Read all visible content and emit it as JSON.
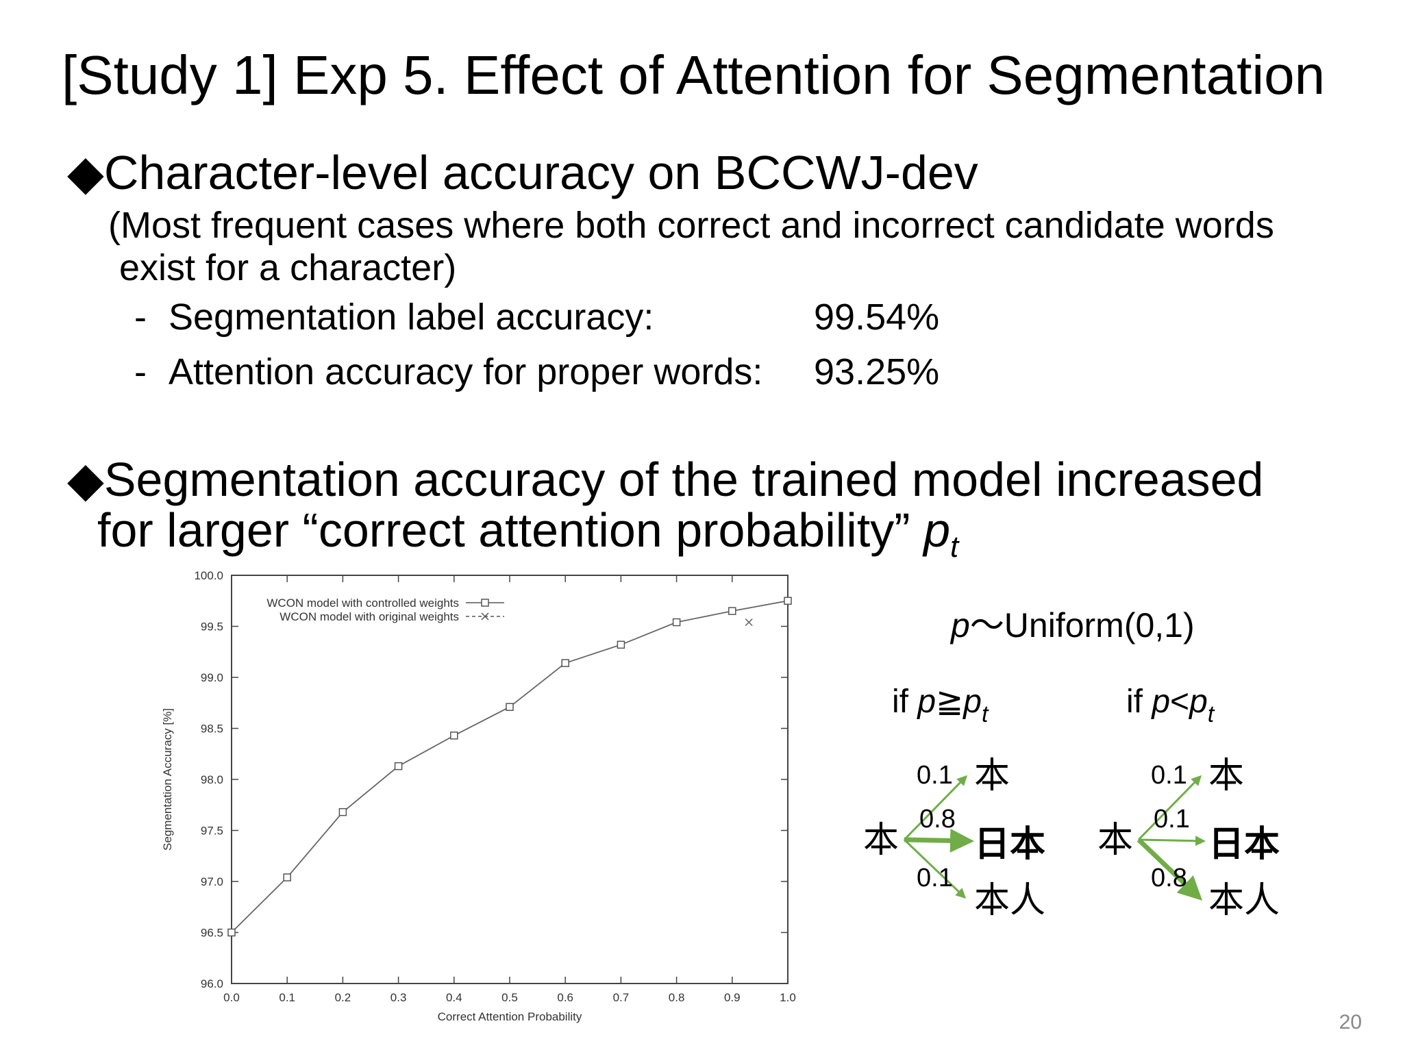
{
  "slide": {
    "title": "[Study 1] Exp 5. Effect of Attention for Segmentation",
    "bullet1": {
      "marker": "◆",
      "text": "Character-level accuracy on BCCWJ-dev",
      "note_line1": "(Most frequent cases where both correct and incorrect candidate words",
      "note_line2": "exist for a character)",
      "items": [
        {
          "dash": "-",
          "label": "Segmentation label accuracy:",
          "value": "99.54%"
        },
        {
          "dash": "-",
          "label": "Attention accuracy for proper words:",
          "value": "93.25%"
        }
      ]
    },
    "bullet2": {
      "marker": "◆",
      "line1": "Segmentation accuracy of the trained model increased",
      "line2_prefix": "for larger “correct attention probability” ",
      "var": "p",
      "var_sub": "t"
    },
    "page_number": "20"
  },
  "chart_data": {
    "type": "line",
    "xlabel": "Correct Attention Probability",
    "ylabel": "Segmentation Accuracy [%]",
    "xlim": [
      0.0,
      1.0
    ],
    "ylim": [
      96.0,
      100.0
    ],
    "xticks": [
      "0.0",
      "0.1",
      "0.2",
      "0.3",
      "0.4",
      "0.5",
      "0.6",
      "0.7",
      "0.8",
      "0.9",
      "1.0"
    ],
    "yticks": [
      "96.0",
      "96.5",
      "97.0",
      "97.5",
      "98.0",
      "98.5",
      "99.0",
      "99.5",
      "100.0"
    ],
    "legend_position": "top-left",
    "grid": false,
    "series": [
      {
        "name": "WCON model with controlled weights",
        "marker": "square",
        "line": "solid",
        "x": [
          0.0,
          0.1,
          0.2,
          0.3,
          0.4,
          0.5,
          0.6,
          0.7,
          0.8,
          0.9,
          1.0
        ],
        "values": [
          96.5,
          97.04,
          97.68,
          98.13,
          98.43,
          98.71,
          99.14,
          99.32,
          99.54,
          99.65,
          99.75
        ]
      },
      {
        "name": "WCON model with original weights",
        "marker": "x",
        "line": "dashed",
        "x": [
          0.93
        ],
        "values": [
          99.54
        ]
      }
    ],
    "color": "#555555"
  },
  "diagram": {
    "dist_var": "p",
    "dist_text": "〜Uniform(0,1)",
    "left": {
      "cond_if": "if ",
      "cond_p": "p",
      "cond_op": "≧",
      "cond_pt": "p",
      "cond_sub": "t",
      "source": "本",
      "targets": [
        "本",
        "日本",
        "本人"
      ],
      "weights": [
        "0.1",
        "0.8",
        "0.1"
      ],
      "bold_index": 1
    },
    "right": {
      "cond_if": "if ",
      "cond_p": "p",
      "cond_op": "<",
      "cond_pt": "p",
      "cond_sub": "t",
      "source": "本",
      "targets": [
        "本",
        "日本",
        "本人"
      ],
      "weights": [
        "0.1",
        "0.1",
        "0.8"
      ],
      "bold_index": 1
    },
    "arrow_color": "#70ad47"
  }
}
